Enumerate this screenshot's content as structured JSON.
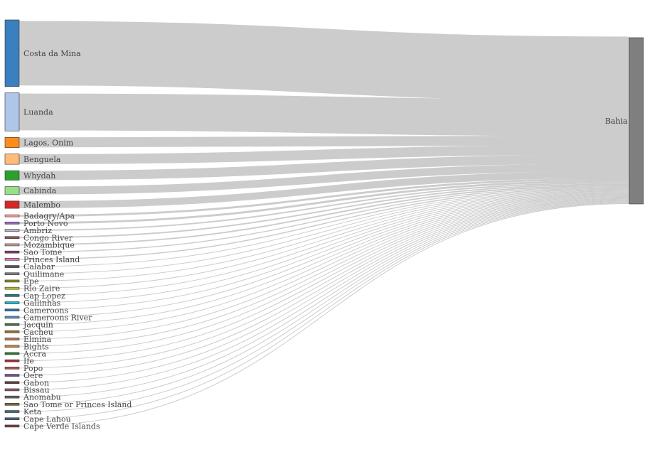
{
  "chart_data": {
    "type": "sankey",
    "title": "",
    "target": {
      "name": "Bahia",
      "color": "#7f7f7f"
    },
    "sources": [
      {
        "name": "Costa da Mina",
        "value": 91,
        "color": "#3a7fbf"
      },
      {
        "name": "Luanda",
        "value": 52,
        "color": "#aec7e8"
      },
      {
        "name": "Lagos, Onim",
        "value": 14,
        "color": "#ff8c1a"
      },
      {
        "name": "Benguela",
        "value": 14,
        "color": "#ffbb78"
      },
      {
        "name": "Whydah",
        "value": 13,
        "color": "#2ca02c"
      },
      {
        "name": "Cabinda",
        "value": 11,
        "color": "#98df8a"
      },
      {
        "name": "Malembo",
        "value": 10,
        "color": "#d62728"
      },
      {
        "name": "Badagry/Apa",
        "value": 3,
        "color": "#ff9896"
      },
      {
        "name": "Porto Novo",
        "value": 3,
        "color": "#9467bd"
      },
      {
        "name": "Ambriz",
        "value": 2,
        "color": "#c5b0d5"
      },
      {
        "name": "Congo River",
        "value": 2,
        "color": "#8c564b"
      },
      {
        "name": "Mozambique",
        "value": 2,
        "color": "#c49c94"
      },
      {
        "name": "Sao Tome",
        "value": 1.5,
        "color": "#7b4173"
      },
      {
        "name": "Princes Island",
        "value": 1.5,
        "color": "#e377c2"
      },
      {
        "name": "Calabar",
        "value": 1,
        "color": "#555555"
      },
      {
        "name": "Quilimane",
        "value": 1,
        "color": "#7f7f7f"
      },
      {
        "name": "Epe",
        "value": 1,
        "color": "#8c8c1a"
      },
      {
        "name": "Rio Zaire",
        "value": 1,
        "color": "#bcbd22"
      },
      {
        "name": "Cap Lopez",
        "value": 1,
        "color": "#17807f"
      },
      {
        "name": "Gallinhas",
        "value": 1,
        "color": "#17becf"
      },
      {
        "name": "Cameroons",
        "value": 1,
        "color": "#1f77b4"
      },
      {
        "name": "Cameroons River",
        "value": 1,
        "color": "#5a8fc4"
      },
      {
        "name": "Jacquin",
        "value": 1,
        "color": "#4a6a4a"
      },
      {
        "name": "Cacheu",
        "value": 1,
        "color": "#a06a2a"
      },
      {
        "name": "Elmina",
        "value": 1,
        "color": "#b07050"
      },
      {
        "name": "Bights",
        "value": 1,
        "color": "#c08040"
      },
      {
        "name": "Accra",
        "value": 1,
        "color": "#2c7a2c"
      },
      {
        "name": "Ife",
        "value": 1,
        "color": "#a03030"
      },
      {
        "name": "Popo",
        "value": 1,
        "color": "#b05050"
      },
      {
        "name": "Oere",
        "value": 1,
        "color": "#705090"
      },
      {
        "name": "Gabon",
        "value": 1,
        "color": "#604040"
      },
      {
        "name": "Bissau",
        "value": 1,
        "color": "#905070"
      },
      {
        "name": "Anomabu",
        "value": 1,
        "color": "#606060"
      },
      {
        "name": "Sao Tome or Princes Island",
        "value": 1,
        "color": "#707030"
      },
      {
        "name": "Keta",
        "value": 1,
        "color": "#407070"
      },
      {
        "name": "Cape Lahou",
        "value": 1,
        "color": "#506080"
      },
      {
        "name": "Cape Verde Islands",
        "value": 1,
        "color": "#804040"
      }
    ]
  }
}
